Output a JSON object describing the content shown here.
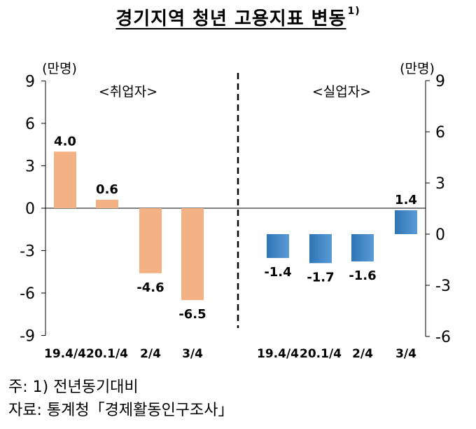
{
  "title": "경기지역 청년 고용지표 변동",
  "title_sup": "1)",
  "notes": {
    "line1": "주: 1) 전년동기대비",
    "line2": "자료: 통계청「경제활동인구조사」"
  },
  "chart_data": [
    {
      "type": "bar",
      "panel_label": "<취업자>",
      "unit_label": "(만명)",
      "categories": [
        "19.4/4",
        "20.1/4",
        "2/4",
        "3/4"
      ],
      "values": [
        4.0,
        0.6,
        -4.6,
        -6.5
      ],
      "value_labels": [
        "4.0",
        "0.6",
        "-4.6",
        "-6.5"
      ],
      "ylim": [
        -9,
        9
      ],
      "yticks": [
        9,
        6,
        3,
        0,
        -3,
        -6,
        -9
      ],
      "axis_side": "left",
      "color": "#F4B183"
    },
    {
      "type": "bar",
      "panel_label": "<실업자>",
      "unit_label": "(만명)",
      "categories": [
        "19.4/4",
        "20.1/4",
        "2/4",
        "3/4"
      ],
      "values": [
        -1.4,
        -1.7,
        -1.6,
        1.4
      ],
      "value_labels": [
        "-1.4",
        "-1.7",
        "-1.6",
        "1.4"
      ],
      "ylim": [
        -6,
        9
      ],
      "yticks": [
        9,
        6,
        3,
        0,
        -3,
        -6
      ],
      "axis_side": "right",
      "color": "#4472C4"
    }
  ]
}
